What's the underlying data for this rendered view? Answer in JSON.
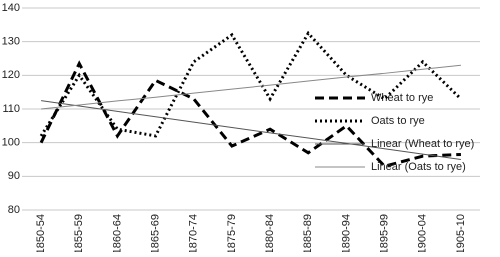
{
  "chart_data": {
    "type": "line",
    "categories": [
      "1850-54",
      "1855-59",
      "1860-64",
      "1865-69",
      "1870-74",
      "1875-79",
      "1880-84",
      "1885-89",
      "1890-94",
      "1895-99",
      "1900-04",
      "1905-10"
    ],
    "series": [
      {
        "name": "Wheat to rye",
        "color": "#000000",
        "style": "dashed",
        "values": [
          100,
          123.5,
          102,
          118.5,
          113,
          99,
          104,
          97,
          105,
          93,
          96,
          96.5
        ]
      },
      {
        "name": "Oats to rye",
        "color": "#000000",
        "style": "dotted",
        "values": [
          102,
          120,
          104,
          102,
          124,
          132,
          113,
          132.5,
          120,
          113,
          124,
          113
        ]
      },
      {
        "name": "Linear (Wheat to rye)",
        "color": "#555555",
        "style": "thin",
        "values": [
          112.5,
          110.9,
          109.3,
          107.7,
          106.1,
          104.5,
          102.9,
          101.4,
          99.8,
          98.2,
          96.6,
          95
        ]
      },
      {
        "name": "Linear (Oats to rye)",
        "color": "#888888",
        "style": "thin",
        "values": [
          110,
          111.2,
          112.4,
          113.5,
          114.7,
          115.9,
          117.1,
          118.3,
          119.5,
          120.6,
          121.8,
          123
        ]
      }
    ],
    "ylim": [
      80,
      140
    ],
    "yticks": [
      80,
      90,
      100,
      110,
      120,
      130,
      140
    ],
    "grid": true,
    "legend": "right"
  }
}
